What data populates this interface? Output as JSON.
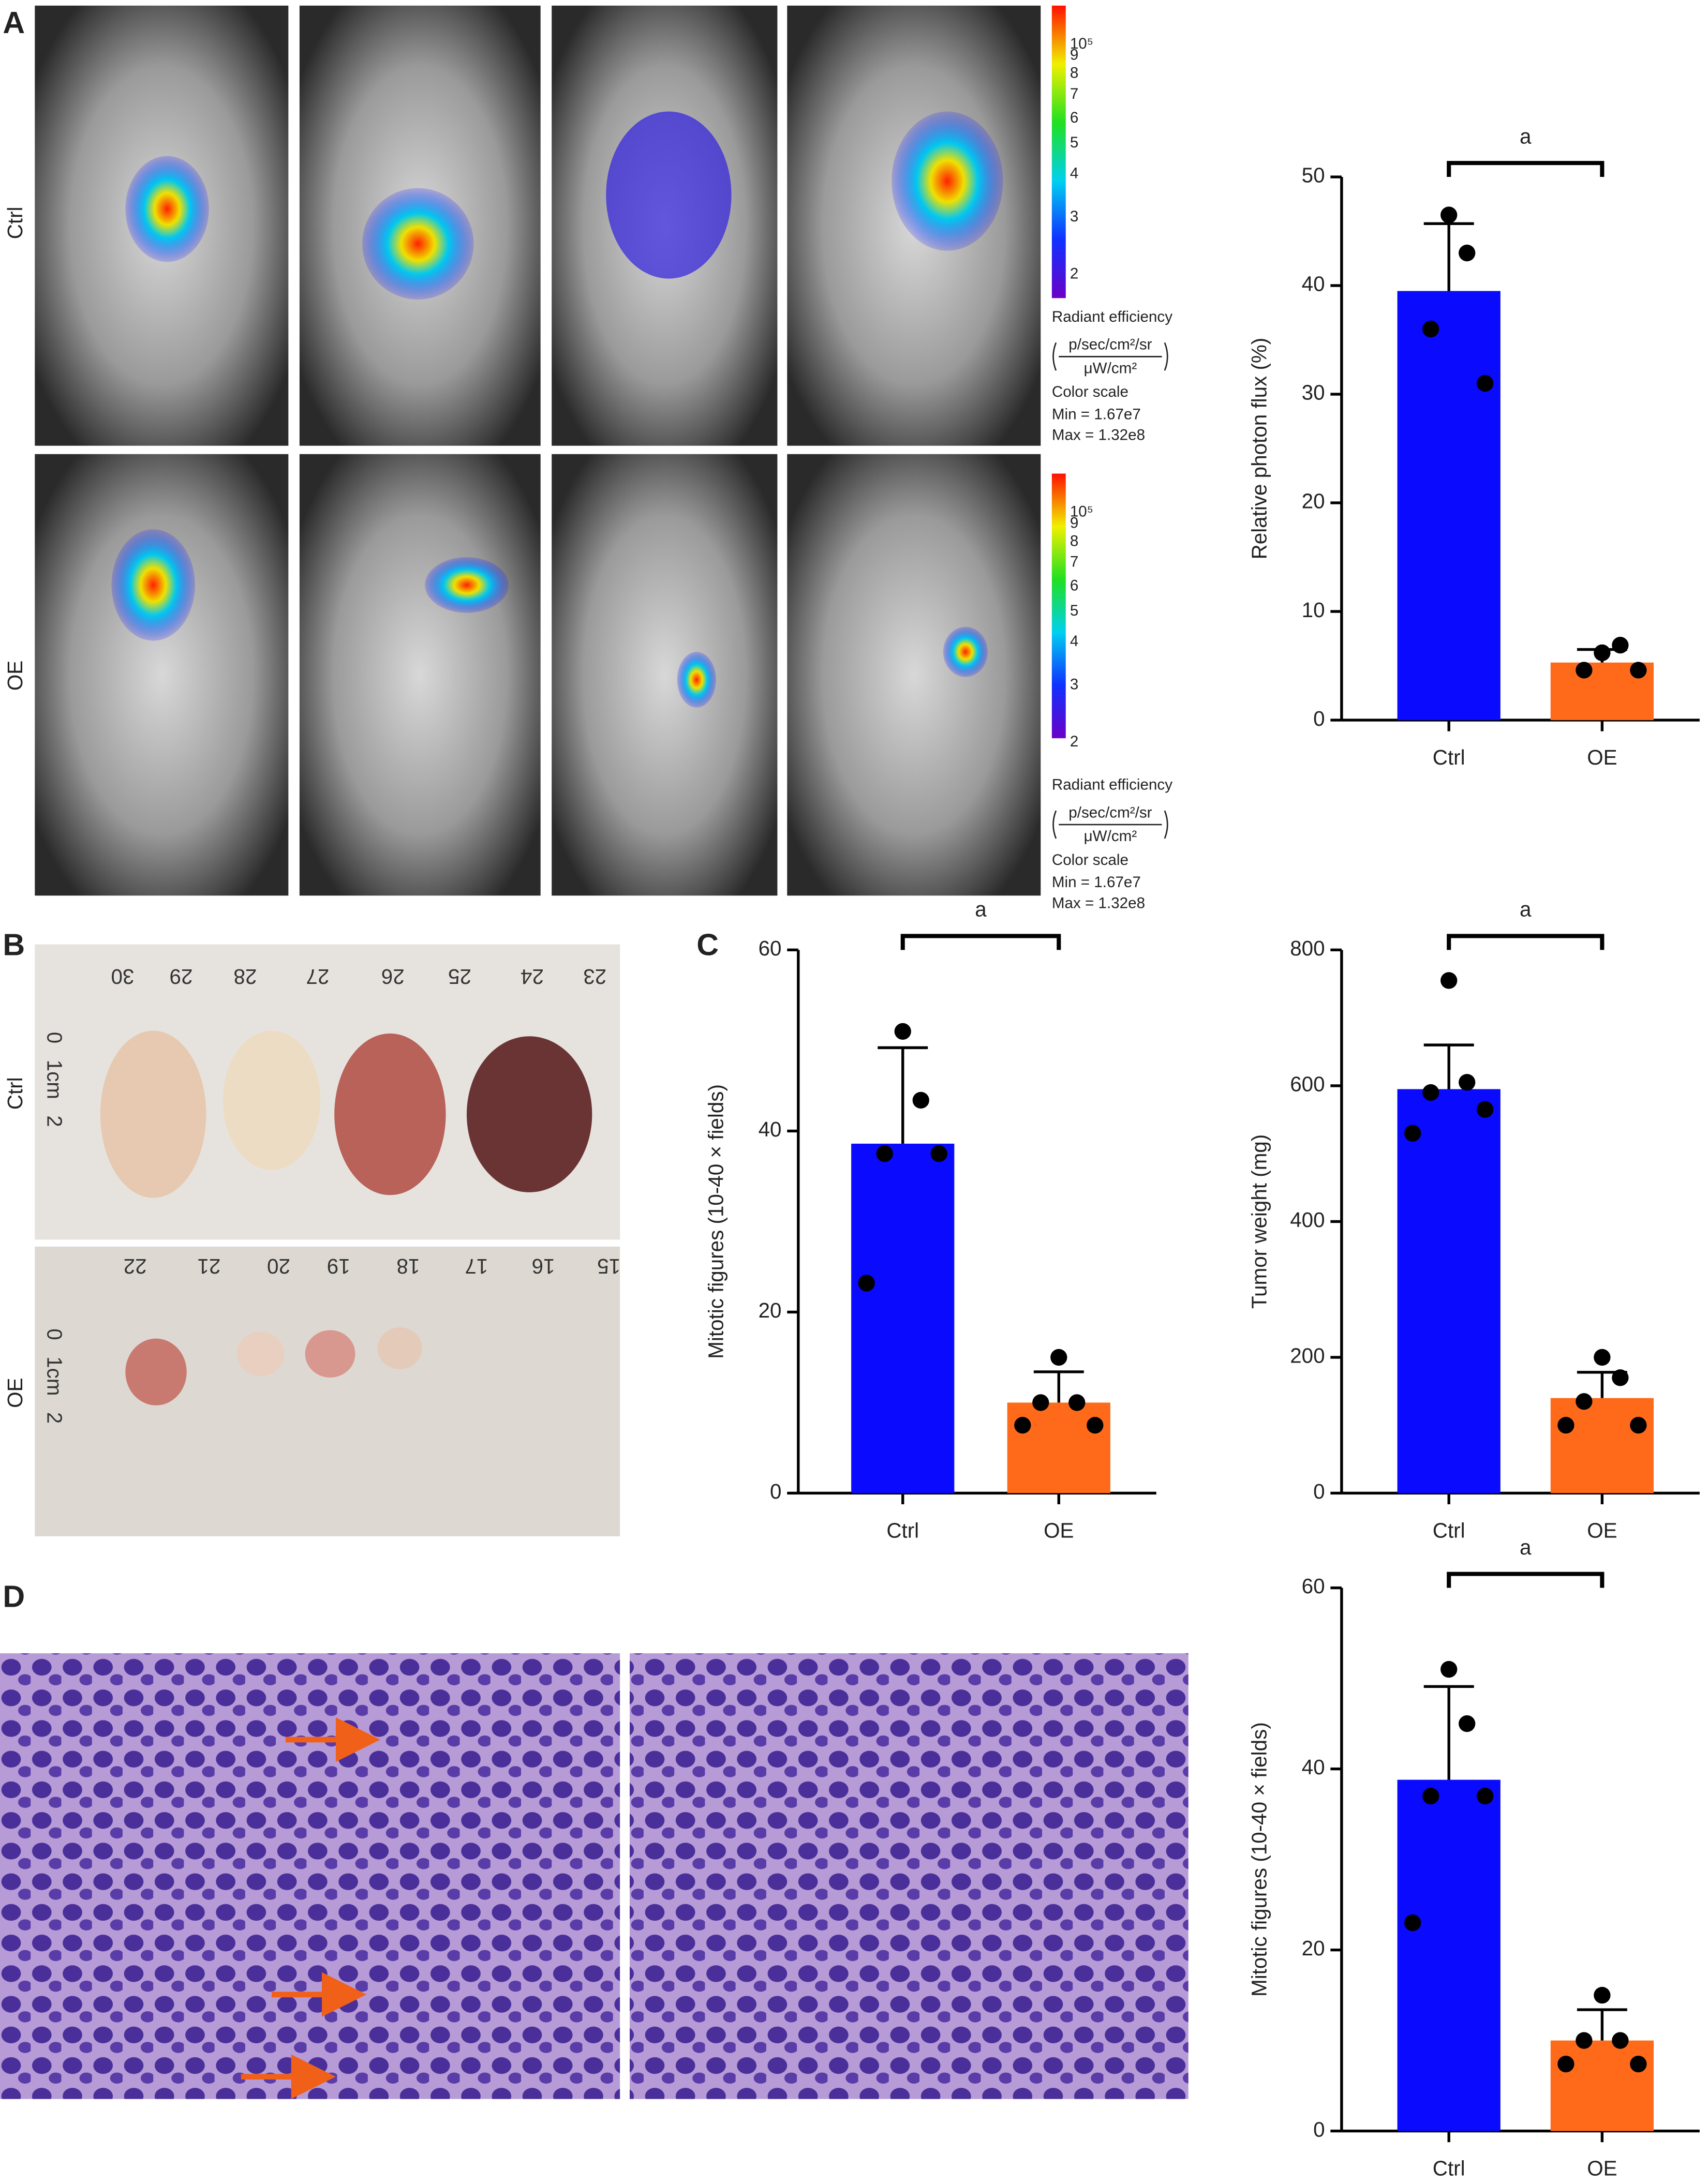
{
  "panel_labels": [
    "A",
    "B",
    "C",
    "D"
  ],
  "row_labels": {
    "A": [
      "Ctrl",
      "OE"
    ],
    "B": [
      "Ctrl",
      "OE"
    ]
  },
  "colorbars": [
    {
      "ticks": [
        "10⁵",
        "9",
        "8",
        "7",
        "6",
        "5",
        "4",
        "3",
        "2"
      ],
      "title": "Radiant efficiency",
      "numerator": "p/sec/cm²/sr",
      "denominator": "μW/cm²",
      "scale": "Color scale",
      "min": "Min = 1.67e7",
      "max": "Max = 1.32e8"
    },
    {
      "ticks": [
        "10⁵",
        "9",
        "8",
        "7",
        "6",
        "5",
        "4",
        "3",
        "2"
      ],
      "title": "Radiant efficiency",
      "numerator": "p/sec/cm²/sr",
      "denominator": "μW/cm²",
      "scale": "Color scale",
      "min": "Min = 1.67e7",
      "max": "Max = 1.32e8"
    }
  ],
  "rulers": [
    {
      "top": [
        "30",
        "29",
        "28",
        "27",
        "26",
        "25",
        "24",
        "23"
      ],
      "side": [
        "0",
        "1cm",
        "2"
      ]
    },
    {
      "top": [
        "22",
        "21",
        "20",
        "19",
        "18",
        "17",
        "16",
        "15"
      ],
      "side": [
        "0",
        "1cm",
        "2"
      ]
    }
  ],
  "chart_data": [
    {
      "type": "bar",
      "ylabel": "Relative photon flux (%)",
      "categories": [
        "Ctrl",
        "OE"
      ],
      "values": [
        39.5,
        5.3
      ],
      "errors": [
        6.2,
        1.2
      ],
      "points": [
        [
          46.5,
          43,
          36,
          31
        ],
        [
          6.2,
          6.9,
          4.6,
          4.6
        ]
      ],
      "colors": [
        "#0a0aff",
        "#ff6a1a"
      ],
      "ylim": [
        0,
        50
      ],
      "yticks": [
        0,
        10,
        20,
        30,
        40,
        50
      ],
      "annotation": "a"
    },
    {
      "type": "bar",
      "ylabel": "Mitotic figures (10-40 × fields)",
      "categories": [
        "Ctrl",
        "OE"
      ],
      "values": [
        38.6,
        10
      ],
      "errors": [
        10.6,
        3.4
      ],
      "points": [
        [
          51,
          43.4,
          37.5,
          37.5,
          23.2
        ],
        [
          15,
          10,
          10,
          7.5,
          7.5
        ]
      ],
      "colors": [
        "#0a0aff",
        "#ff6a1a"
      ],
      "ylim": [
        0,
        60
      ],
      "yticks": [
        0,
        20,
        40,
        60
      ],
      "annotation": "a"
    },
    {
      "type": "bar",
      "ylabel": "Tumor weight (mg)",
      "categories": [
        "Ctrl",
        "OE"
      ],
      "values": [
        595,
        140
      ],
      "errors": [
        65,
        38
      ],
      "points": [
        [
          755,
          605,
          590,
          565,
          530
        ],
        [
          200,
          170,
          135,
          100,
          100
        ]
      ],
      "colors": [
        "#0a0aff",
        "#ff6a1a"
      ],
      "ylim": [
        0,
        800
      ],
      "yticks": [
        0,
        200,
        400,
        600,
        800
      ],
      "annotation": "a"
    },
    {
      "type": "bar",
      "ylabel": "Mitotic figures (10-40 × fields)",
      "categories": [
        "Ctrl",
        "OE"
      ],
      "values": [
        38.8,
        10
      ],
      "errors": [
        10.3,
        3.4
      ],
      "points": [
        [
          51,
          45,
          37,
          37,
          23
        ],
        [
          15,
          10,
          10,
          7.4,
          7.4
        ]
      ],
      "colors": [
        "#0a0aff",
        "#ff6a1a"
      ],
      "ylim": [
        0,
        60
      ],
      "yticks": [
        0,
        20,
        40,
        60
      ],
      "annotation": "a"
    }
  ]
}
